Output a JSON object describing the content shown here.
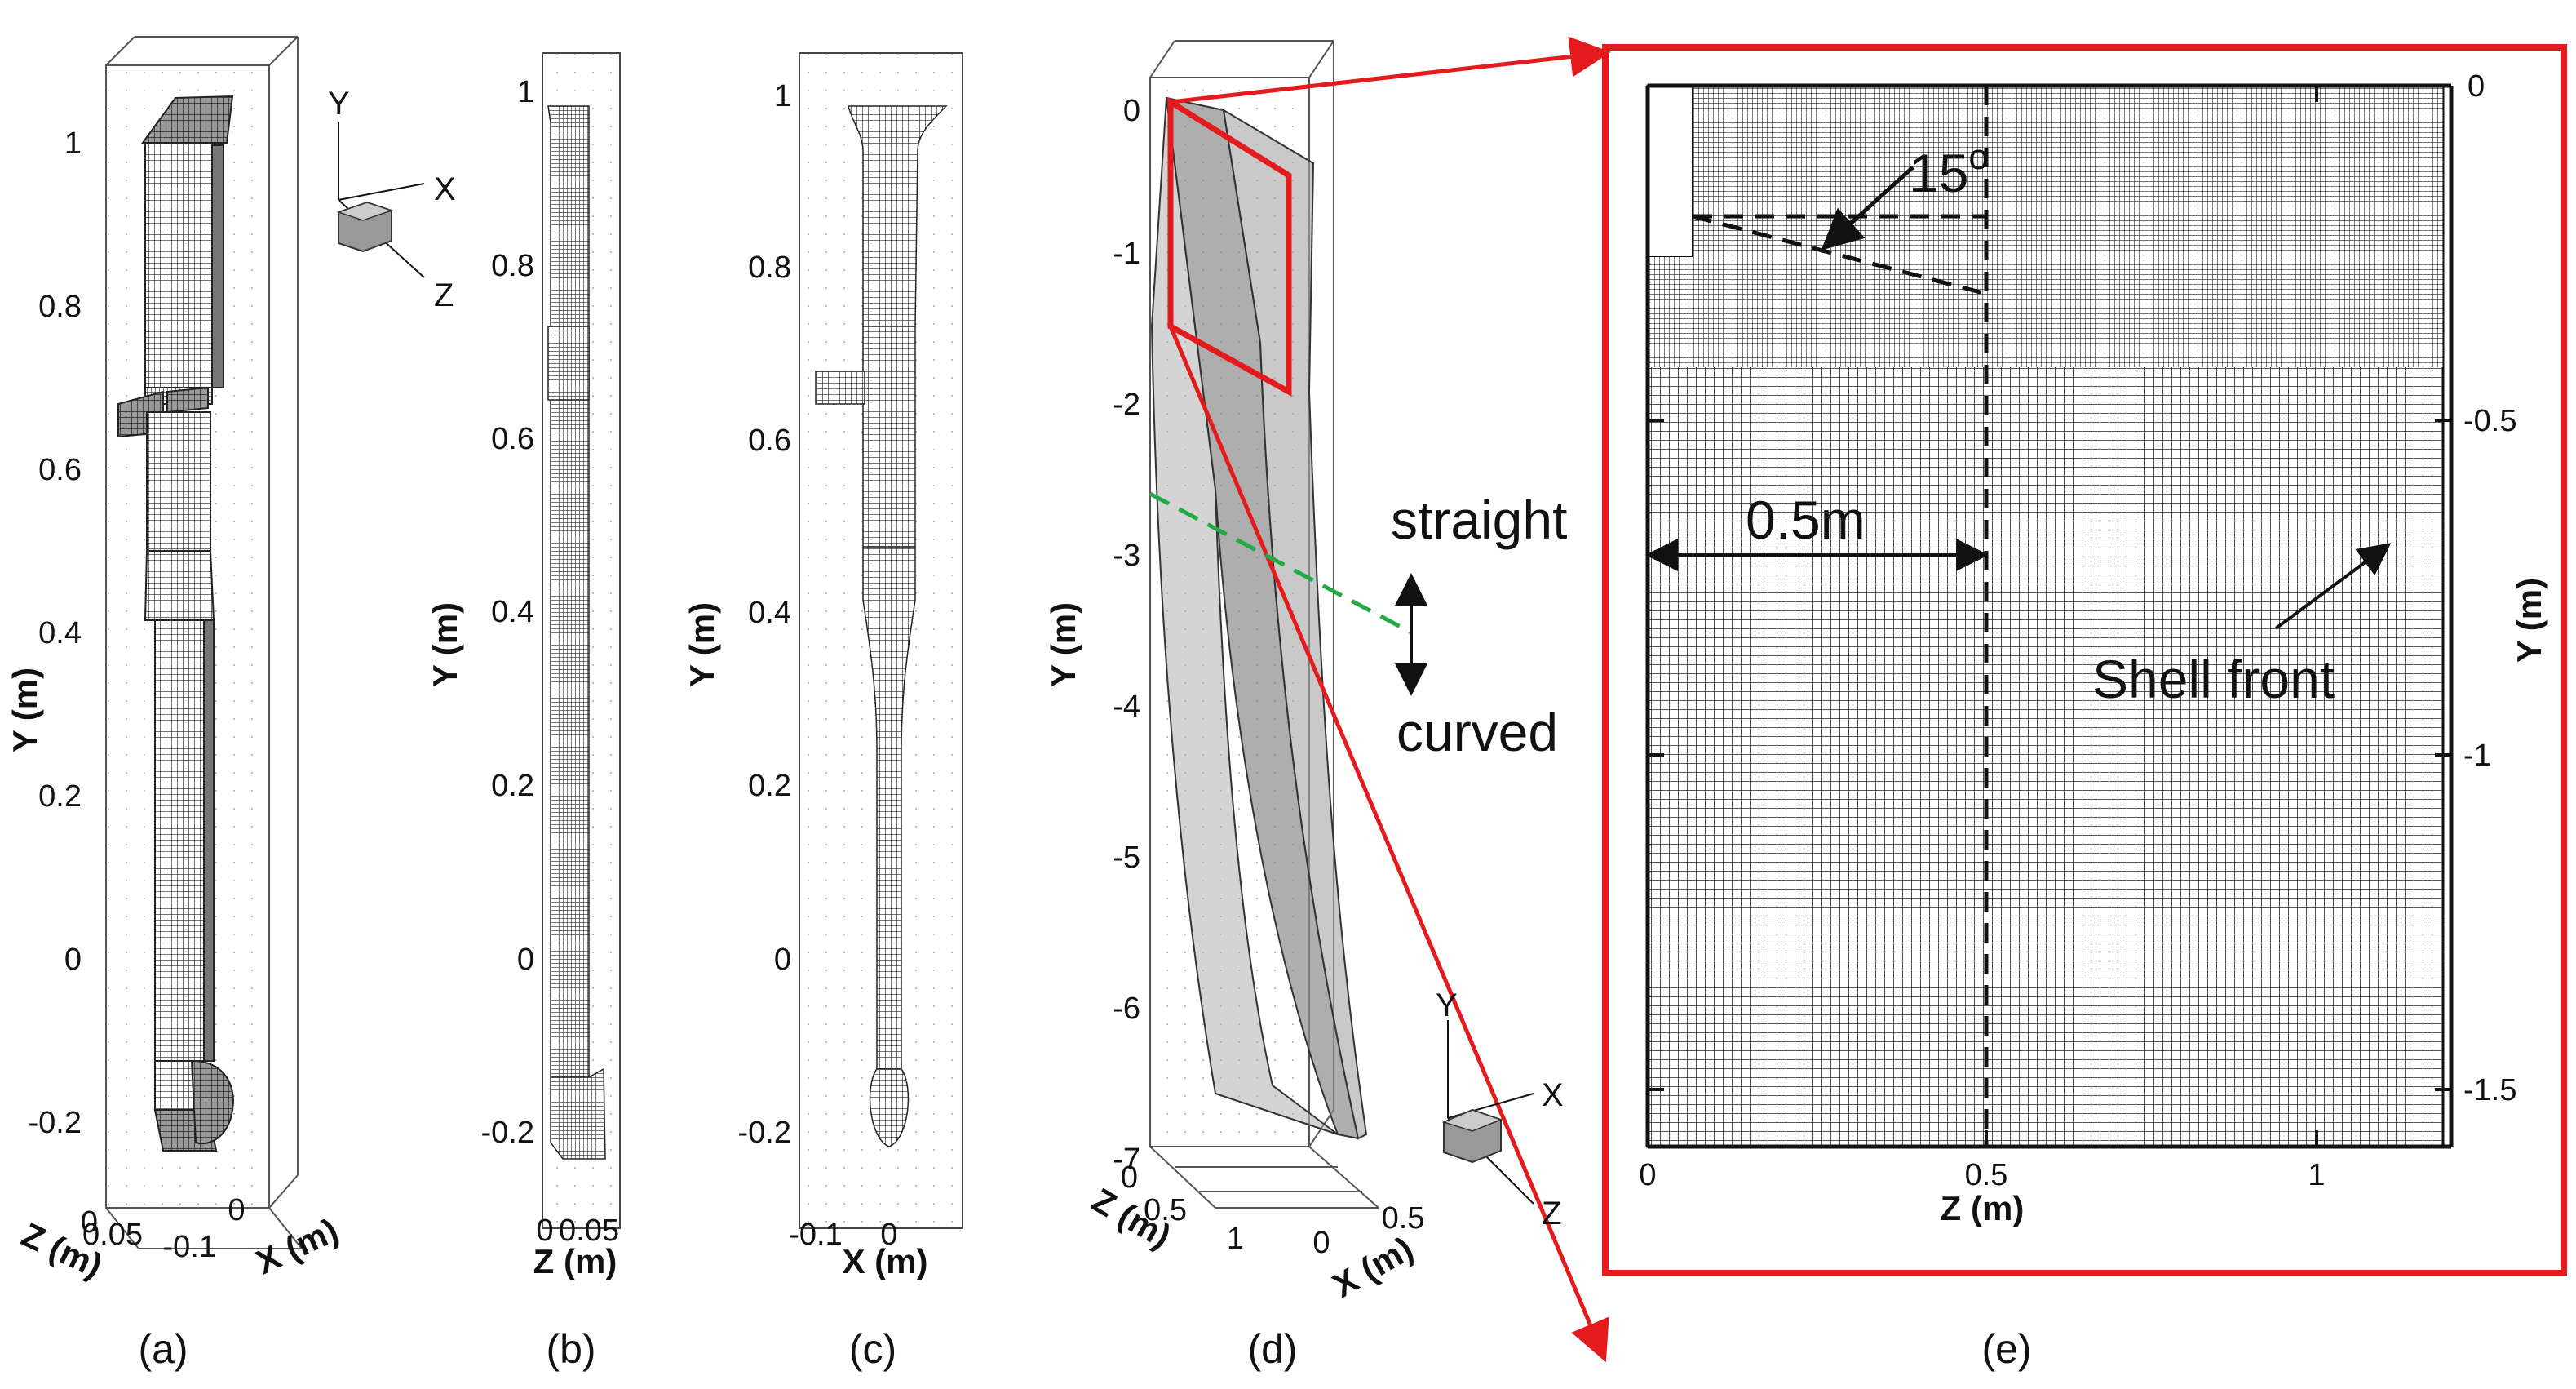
{
  "panels": {
    "a": {
      "label": "(a)",
      "y_axis_title": "Y (m)",
      "z_axis_title": "Z (m)",
      "x_axis_title": "X (m)",
      "y_ticks": [
        "1",
        "0.8",
        "0.6",
        "0.4",
        "0.2",
        "0",
        "-0.2"
      ],
      "z_ticks": [
        "0",
        "0.05"
      ],
      "x_ticks": [
        "-0.1",
        "0"
      ],
      "triad": {
        "y": "Y",
        "x": "X",
        "z": "Z"
      }
    },
    "b": {
      "label": "(b)",
      "y_axis_title": "Y (m)",
      "x_axis_title": "Z (m)",
      "y_ticks": [
        "1",
        "0.8",
        "0.6",
        "0.4",
        "0.2",
        "0",
        "-0.2"
      ],
      "x_ticks": [
        "0",
        "0.05"
      ]
    },
    "c": {
      "label": "(c)",
      "y_axis_title": "Y (m)",
      "x_axis_title": "X (m)",
      "y_ticks": [
        "1",
        "0.8",
        "0.6",
        "0.4",
        "0.2",
        "0",
        "-0.2"
      ],
      "x_ticks": [
        "-0.1",
        "0"
      ]
    },
    "d": {
      "label": "(d)",
      "y_axis_title": "Y (m)",
      "z_axis_title": "Z (m)",
      "x_axis_title": "X (m)",
      "y_ticks": [
        "0",
        "-1",
        "-2",
        "-3",
        "-4",
        "-5",
        "-6",
        "-7"
      ],
      "z_ticks": [
        "0",
        "0.5",
        "1"
      ],
      "x_ticks": [
        "0",
        "0.5"
      ],
      "annotation_top": "straight",
      "annotation_bottom": "curved",
      "triad": {
        "y": "Y",
        "x": "X",
        "z": "Z"
      }
    },
    "e": {
      "label": "(e)",
      "y_axis_title": "Y (m)",
      "x_axis_title": "Z (m)",
      "y_ticks": [
        "0",
        "-0.5",
        "-1",
        "-1.5"
      ],
      "x_ticks": [
        "0",
        "0.5",
        "1"
      ],
      "angle_label": "15",
      "angle_unit": "o",
      "distance_label": "0.5m",
      "shell_label": "Shell front"
    }
  },
  "colors": {
    "highlight": "#e41a1c",
    "straight_curved_boundary": "#22aa44",
    "mesh": "#222222",
    "solid_fill": "#8c8c8c"
  }
}
